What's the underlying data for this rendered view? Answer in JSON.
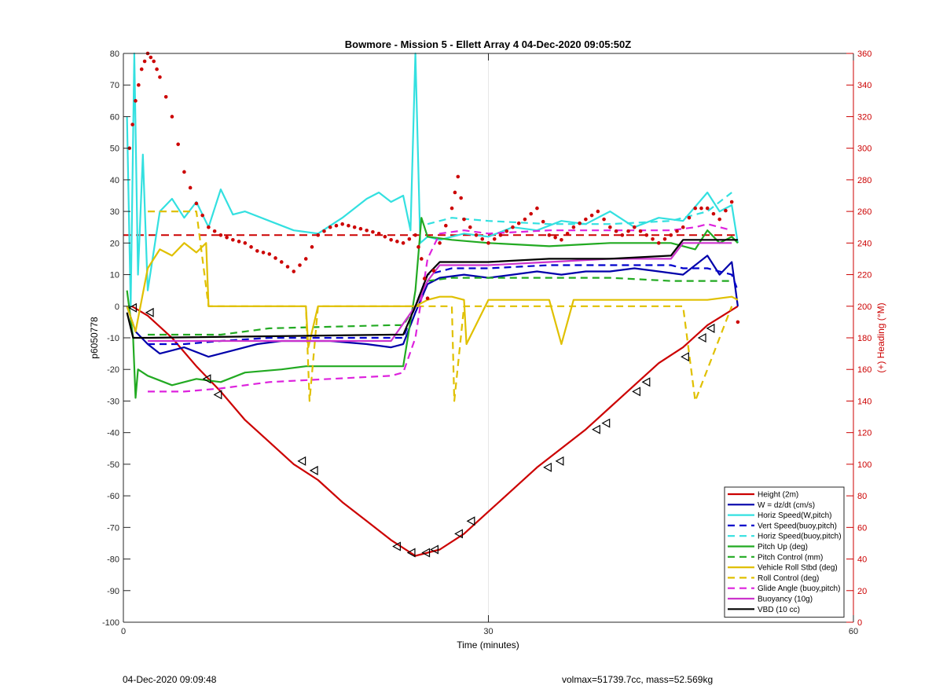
{
  "chart_data": {
    "type": "line",
    "title": "Bowmore - Mission 5 - Ellett Array 4 04-Dec-2020 09:05:50Z",
    "xlabel": "Time (minutes)",
    "ylabel": "p6050778",
    "y2label": "(+) Heading (°M)",
    "xlim": [
      0,
      60
    ],
    "ylim": [
      -100,
      80
    ],
    "y2lim": [
      0,
      360
    ],
    "xticks": [
      "0",
      "30",
      "60"
    ],
    "yticks": [
      "80",
      "70",
      "60",
      "50",
      "40",
      "30",
      "20",
      "10",
      "0",
      "-10",
      "-20",
      "-30",
      "-40",
      "-50",
      "-60",
      "-70",
      "-80",
      "-90",
      "-100"
    ],
    "y2ticks": [
      "360",
      "340",
      "320",
      "300",
      "280",
      "260",
      "240",
      "220",
      "200",
      "180",
      "160",
      "140",
      "120",
      "100",
      "80",
      "60",
      "40",
      "20",
      "0"
    ],
    "grid": "vertical",
    "legend_position": "bottom-right",
    "series": [
      {
        "name": "Height (2m)",
        "color": "#cc0000",
        "style": "solid",
        "x": [
          0.7,
          2,
          4,
          6,
          8,
          10,
          12,
          14,
          16,
          18,
          20,
          22,
          24,
          25,
          26,
          28,
          30,
          32,
          34,
          36,
          38,
          40,
          42,
          44,
          46,
          48,
          50.5
        ],
        "y": [
          0,
          -3,
          -10,
          -19,
          -27,
          -36,
          -43,
          -50,
          -55,
          -62,
          -68,
          -74,
          -79,
          -78,
          -77,
          -72,
          -65,
          -58,
          -51,
          -45,
          -39,
          -32,
          -25,
          -18,
          -13,
          -6,
          0
        ]
      },
      {
        "name": "W = dz/dt (cm/s)",
        "color": "#0000aa",
        "style": "solid",
        "x": [
          0.3,
          1,
          2,
          3,
          5,
          7,
          9,
          11,
          13,
          15,
          17,
          20,
          22,
          23,
          24,
          25,
          26,
          28,
          30,
          32,
          34,
          36,
          38,
          40,
          42,
          44,
          46,
          48,
          49,
          50,
          50.5
        ],
        "y": [
          0,
          -8,
          -12,
          -15,
          -13,
          -16,
          -14,
          -12,
          -11,
          -11,
          -11,
          -12,
          -13,
          -12,
          -2,
          7,
          9,
          10,
          9,
          10,
          11,
          10,
          11,
          11,
          12,
          11,
          10,
          16,
          10,
          14,
          0
        ]
      },
      {
        "name": "Horiz Speed(W,pitch)",
        "color": "#33e0e0",
        "style": "solid",
        "x": [
          0.3,
          0.6,
          0.9,
          1.2,
          1.6,
          2,
          3,
          4,
          5,
          6,
          7,
          8,
          9,
          10,
          12,
          14,
          16,
          18,
          20,
          21,
          22,
          23,
          23.6,
          24,
          24.4,
          25,
          26,
          28,
          30,
          32,
          34,
          36,
          38,
          40,
          42,
          44,
          46,
          48,
          49,
          50,
          50.5
        ],
        "y": [
          60,
          0,
          80,
          10,
          48,
          5,
          30,
          34,
          28,
          33,
          25,
          37,
          29,
          30,
          27,
          24,
          23,
          28,
          34,
          36,
          33,
          35,
          24,
          80,
          20,
          22,
          21,
          23,
          22,
          25,
          24,
          27,
          26,
          30,
          25,
          28,
          27,
          36,
          30,
          32,
          20
        ]
      },
      {
        "name": "Vert Speed(buoy,pitch)",
        "color": "#0000cc",
        "style": "dashed",
        "x": [
          2,
          5,
          8,
          12,
          17,
          22,
          23,
          24,
          25,
          27,
          30,
          35,
          40,
          45,
          46,
          48,
          50,
          50.5
        ],
        "y": [
          -12,
          -12,
          -11,
          -10,
          -10,
          -10,
          -10,
          0,
          10,
          12,
          12,
          13,
          13,
          13,
          12,
          12,
          10,
          5
        ]
      },
      {
        "name": "Horiz Speed(buoy,pitch)",
        "color": "#33e0e0",
        "style": "dashed",
        "x": [
          25,
          27,
          30,
          35,
          40,
          45,
          46,
          48,
          50
        ],
        "y": [
          26,
          28,
          27,
          26,
          26,
          27,
          28,
          30,
          36
        ]
      },
      {
        "name": "Pitch Up (deg)",
        "color": "#22aa22",
        "style": "solid",
        "x": [
          0.3,
          0.8,
          1,
          1.2,
          2,
          4,
          6,
          8,
          10,
          13,
          15,
          18,
          22,
          23,
          24,
          24.5,
          25,
          27,
          30,
          35,
          40,
          45,
          47,
          48,
          49,
          50,
          50.5
        ],
        "y": [
          5,
          -10,
          -29,
          -20,
          -22,
          -25,
          -23,
          -24,
          -21,
          -20,
          -19,
          -19,
          -19,
          -19,
          5,
          28,
          22,
          21,
          20,
          19,
          20,
          20,
          18,
          24,
          20,
          22,
          20
        ]
      },
      {
        "name": "Pitch Control (mm)",
        "color": "#22aa22",
        "style": "dashed",
        "x": [
          2,
          8,
          12,
          22,
          23,
          24,
          25,
          27,
          30,
          40,
          45,
          50
        ],
        "y": [
          -9,
          -9,
          -7,
          -6,
          -6,
          0,
          8,
          9,
          9,
          9,
          8,
          8
        ]
      },
      {
        "name": "Vehicle Roll Stbd (deg)",
        "color": "#e0c000",
        "style": "solid",
        "x": [
          0.3,
          1,
          2,
          3,
          4,
          5,
          6,
          6.8,
          7,
          9,
          12,
          14,
          15,
          15.2,
          16,
          20,
          23,
          24,
          25,
          26,
          27,
          28,
          28.2,
          30,
          35,
          36,
          37,
          38,
          40,
          42,
          44,
          46,
          48,
          50,
          50.5
        ],
        "y": [
          0,
          -8,
          12,
          18,
          16,
          20,
          17,
          20,
          0,
          0,
          0,
          0,
          0,
          -13,
          0,
          0,
          0,
          0,
          2,
          3,
          3,
          2,
          -12,
          2,
          2,
          -12,
          2,
          2,
          2,
          2,
          2,
          2,
          2,
          3,
          2
        ]
      },
      {
        "name": "Roll Control (deg)",
        "color": "#e0c000",
        "style": "dashed",
        "x": [
          2,
          6,
          7,
          15,
          15.3,
          16,
          24,
          25,
          27,
          27.2,
          28,
          30,
          36,
          38,
          40,
          44,
          46,
          47,
          50
        ],
        "y": [
          30,
          30,
          0,
          0,
          -30,
          0,
          0,
          0,
          0,
          -30,
          0,
          0,
          0,
          0,
          0,
          0,
          0,
          -30,
          0
        ]
      },
      {
        "name": "Glide Angle (buoy,pitch)",
        "color": "#dd22dd",
        "style": "dashed",
        "x": [
          2,
          5,
          8,
          12,
          17,
          22,
          23,
          24,
          25,
          26,
          28,
          30,
          35,
          40,
          45,
          47,
          48,
          50
        ],
        "y": [
          -27,
          -27,
          -26,
          -24,
          -23,
          -22,
          -21,
          -10,
          15,
          23,
          24,
          23,
          24,
          24,
          24,
          25,
          26,
          24
        ]
      },
      {
        "name": "Buoyancy (10g)",
        "color": "#cc33cc",
        "style": "solid",
        "x": [
          2,
          22,
          24,
          25,
          26,
          30,
          35,
          40,
          45,
          46,
          50
        ],
        "y": [
          -11,
          -11,
          0,
          8,
          13,
          13,
          14,
          15,
          15,
          20,
          20
        ]
      },
      {
        "name": "VBD (10 cc)",
        "color": "#000000",
        "style": "solid",
        "x": [
          0.3,
          0.8,
          2,
          22,
          23,
          24,
          25,
          26,
          30,
          35,
          40,
          45,
          46,
          50.5
        ],
        "y": [
          -2,
          -10,
          -10,
          -9,
          -9,
          0,
          10,
          14,
          14,
          15,
          15,
          16,
          21,
          21
        ]
      }
    ],
    "heading_series": {
      "name": "Heading",
      "axis": "right",
      "color": "#cc0000",
      "x": [
        0.5,
        1,
        1.5,
        2,
        2.5,
        3,
        4,
        5,
        6,
        7,
        8,
        9,
        10,
        11,
        12,
        13,
        14,
        15,
        16,
        17,
        18,
        19,
        20,
        21,
        22,
        23,
        24,
        24.5,
        25,
        26,
        27,
        27.5,
        28,
        29,
        30,
        31,
        32,
        33,
        34,
        35,
        36,
        37,
        38,
        39,
        40,
        41,
        42,
        43,
        44,
        45,
        46,
        47,
        48,
        49,
        50,
        50.5
      ],
      "y": [
        300,
        330,
        350,
        360,
        355,
        345,
        320,
        285,
        265,
        250,
        245,
        242,
        240,
        235,
        233,
        228,
        222,
        230,
        245,
        250,
        252,
        250,
        248,
        246,
        242,
        240,
        245,
        230,
        205,
        240,
        262,
        282,
        255,
        245,
        240,
        245,
        250,
        255,
        262,
        245,
        242,
        250,
        255,
        260,
        250,
        245,
        250,
        245,
        240,
        245,
        250,
        262,
        262,
        255,
        266,
        190
      ]
    },
    "heading_reference": {
      "axis": "right",
      "color": "#cc0000",
      "style": "dashed",
      "x": [
        0,
        50.5
      ],
      "y": [
        245,
        245
      ]
    },
    "markers": {
      "color": "#000000",
      "x": [
        0.8,
        2.2,
        6.9,
        7.8,
        14.7,
        15.7,
        22.5,
        23.7,
        24.9,
        25.6,
        27.6,
        28.6,
        34.9,
        35.9,
        38.9,
        39.7,
        42.2,
        43.0,
        46.2,
        47.6,
        48.3
      ],
      "y": [
        -0.5,
        -2,
        -23,
        -28,
        -49,
        -52,
        -76,
        -78,
        -78,
        -77,
        -72,
        -68,
        -51,
        -49,
        -39,
        -37,
        -27,
        -24,
        -16,
        -10,
        -7
      ]
    }
  },
  "footer": {
    "left": "04-Dec-2020 09:09:48",
    "right": "volmax=51739.7cc, mass=52.569kg"
  }
}
